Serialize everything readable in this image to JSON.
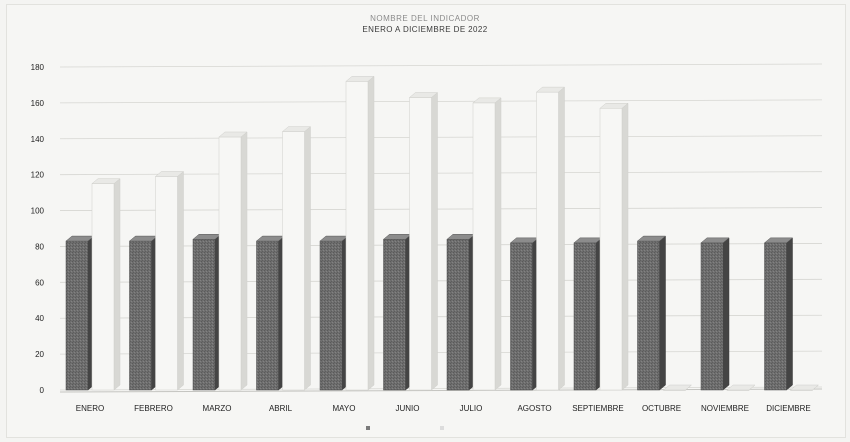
{
  "chart_data": {
    "type": "bar",
    "title": "NOMBRE DEL INDICADOR",
    "subtitle": "ENERO A DICIEMBRE DE 2022",
    "xlabel": "",
    "ylabel": "",
    "ylim": [
      0,
      180
    ],
    "yticks": [
      0,
      20,
      40,
      60,
      80,
      100,
      120,
      140,
      160,
      180
    ],
    "grid": true,
    "legend_position": "bottom",
    "categories": [
      "ENERO",
      "FEBRERO",
      "MARZO",
      "ABRIL",
      "MAYO",
      "JUNIO",
      "JULIO",
      "AGOSTO",
      "SEPTIEMBRE",
      "OCTUBRE",
      "NOVIEMBRE",
      "DICIEMBRE"
    ],
    "series": [
      {
        "values": [
          83,
          83,
          84,
          83,
          83,
          84,
          84,
          82,
          82,
          83,
          82,
          82
        ],
        "color": "#6e6e6e"
      },
      {
        "values": [
          115,
          119,
          141,
          144,
          172,
          163,
          160,
          166,
          157,
          0,
          0,
          0
        ],
        "color": "#f2f2f0"
      }
    ]
  }
}
